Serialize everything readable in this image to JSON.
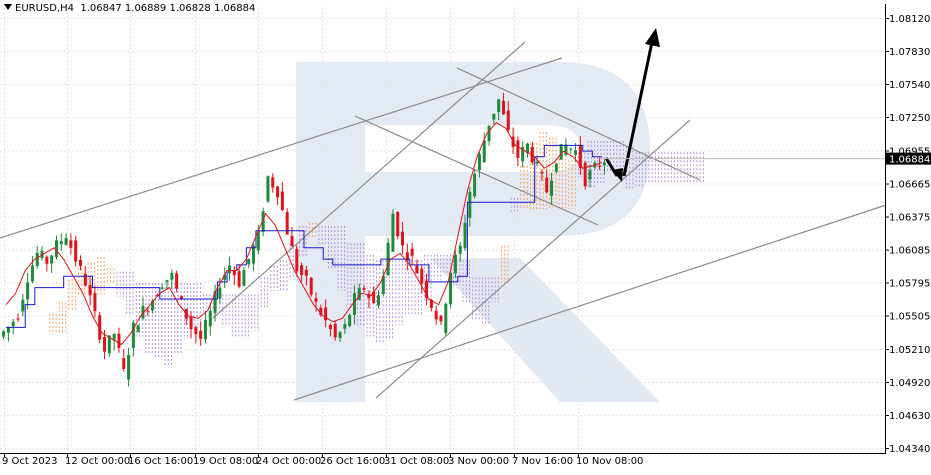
{
  "header": {
    "symbol": "EURUSD,H4",
    "ohlc": "1.06847 1.06889 1.06828 1.06884"
  },
  "chart_data": {
    "type": "candlestick",
    "symbol": "EURUSD,H4",
    "y_ticks": [
      "1.08120",
      "1.07830",
      "1.07540",
      "1.07250",
      "1.06955",
      "1.06665",
      "1.06375",
      "1.06085",
      "1.05795",
      "1.05505",
      "1.05210",
      "1.04920",
      "1.04630",
      "1.04340"
    ],
    "y_range": [
      1.0434,
      1.0812
    ],
    "current_price": "1.06884",
    "x_ticks": [
      "9 Oct 2023",
      "12 Oct 00:00",
      "16 Oct 16:00",
      "19 Oct 08:00",
      "24 Oct 00:00",
      "26 Oct 16:00",
      "31 Oct 08:00",
      "3 Nov 00:00",
      "7 Nov 16:00",
      "10 Nov 08:00"
    ],
    "grid": true,
    "colors": {
      "bull_candle": "#1f8a3a",
      "bear_candle": "#e0121a",
      "tenkan": "#e0121a",
      "kijun": "#1a1acc",
      "cloud_bull": "#f5a05a",
      "cloud_bear": "#b48fd8",
      "trend_lines": "#8c8c8c",
      "arrow": "#000000",
      "current_price_label": "#000000"
    },
    "close_path": [
      1.054,
      1.0552,
      1.0585,
      1.0605,
      1.0598,
      1.0612,
      1.0622,
      1.06,
      1.058,
      1.055,
      1.052,
      1.0535,
      1.05,
      1.054,
      1.0555,
      1.0565,
      1.058,
      1.0585,
      1.056,
      1.054,
      1.053,
      1.0552,
      1.058,
      1.0595,
      1.058,
      1.06,
      1.062,
      1.0672,
      1.066,
      1.0625,
      1.0592,
      1.058,
      1.056,
      1.0545,
      1.053,
      1.054,
      1.0565,
      1.0575,
      1.056,
      1.0585,
      1.064,
      1.061,
      1.06,
      1.058,
      1.056,
      1.054,
      1.059,
      1.061,
      1.066,
      1.069,
      1.072,
      1.074,
      1.071,
      1.069,
      1.07,
      1.068,
      1.066,
      1.069,
      1.07,
      1.0695,
      1.067,
      1.068,
      1.0688
    ],
    "tenkan_path": [
      1.056,
      1.057,
      1.059,
      1.06,
      1.0605,
      1.061,
      1.06,
      1.0585,
      1.057,
      1.055,
      1.0535,
      1.053,
      1.0525,
      1.0535,
      1.055,
      1.056,
      1.057,
      1.0575,
      1.056,
      1.055,
      1.0548,
      1.0555,
      1.0575,
      1.059,
      1.059,
      1.06,
      1.062,
      1.064,
      1.063,
      1.061,
      1.059,
      1.0575,
      1.056,
      1.055,
      1.0545,
      1.0548,
      1.056,
      1.057,
      1.0568,
      1.058,
      1.06,
      1.0605,
      1.0595,
      1.058,
      1.0565,
      1.056,
      1.058,
      1.062,
      1.066,
      1.069,
      1.071,
      1.072,
      1.0715,
      1.07,
      1.0695,
      1.069,
      1.068,
      1.0685,
      1.0695,
      1.069,
      1.068,
      1.0682,
      1.0685
    ],
    "kijun_path": [
      1.054,
      1.054,
      1.056,
      1.0575,
      1.0575,
      1.0575,
      1.0585,
      1.0585,
      1.0585,
      1.0575,
      1.0575,
      1.0575,
      1.0575,
      1.0575,
      1.0575,
      1.0575,
      1.0565,
      1.0565,
      1.0565,
      1.0565,
      1.0565,
      1.0565,
      1.058,
      1.059,
      1.0595,
      1.061,
      1.0625,
      1.0625,
      1.0625,
      1.0625,
      1.0625,
      1.061,
      1.061,
      1.06,
      1.0595,
      1.0595,
      1.0595,
      1.0595,
      1.0595,
      1.06,
      1.06,
      1.06,
      1.0595,
      1.0595,
      1.058,
      1.058,
      1.058,
      1.0585,
      1.065,
      1.065,
      1.065,
      1.065,
      1.065,
      1.065,
      1.065,
      1.069,
      1.07,
      1.07,
      1.07,
      1.07,
      1.0695,
      1.069,
      1.069
    ]
  }
}
